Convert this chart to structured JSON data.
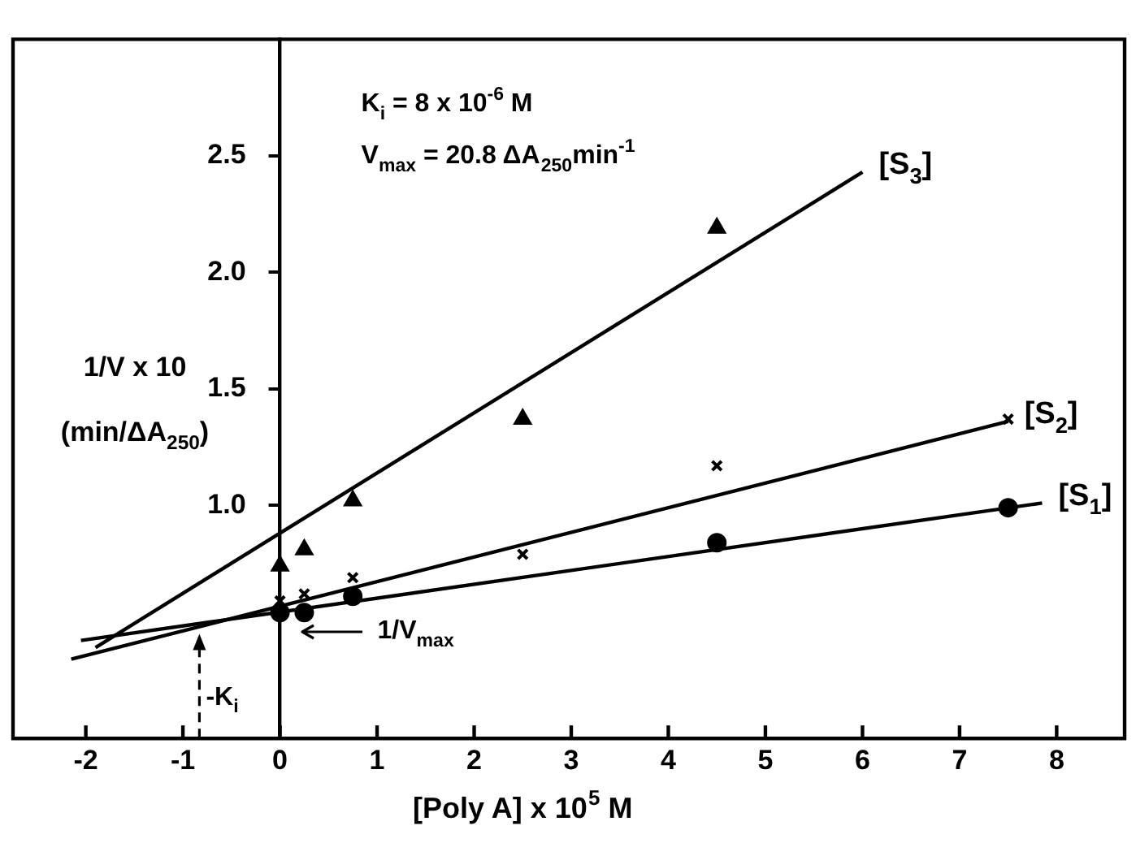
{
  "chart_data": {
    "type": "scatter",
    "xlabel": "[Poly A] x 10$^{5}$ M",
    "ylabel": "1/V x 10 (min/ΔA$_{250}$)",
    "xlim": [
      -2.75,
      8.7
    ],
    "ylim": [
      0,
      3
    ],
    "xticks": [
      -2,
      -1,
      0,
      1,
      2,
      3,
      4,
      5,
      6,
      7,
      8
    ],
    "yticks": [
      {
        "value": 1,
        "label": "1.0"
      },
      {
        "value": 1.5,
        "label": "1.5"
      },
      {
        "value": 2,
        "label": "2.0"
      },
      {
        "value": 2.5,
        "label": "2.5"
      }
    ],
    "annotations": [
      "K$_{i}$ = 8 x 10$^{-6}$ M",
      "V$_{max}$ = 20.8 ΔA$_{250}$min$^{-1}$",
      {
        "text": "-K$_{i}$",
        "x": -0.83,
        "y": 0.49
      },
      "1/V$_{max}$"
    ],
    "series": [
      {
        "type": "scatter",
        "marker": "triangle",
        "color": "#000000",
        "x": [
          0,
          0.25,
          0.75,
          2.5,
          4.5
        ],
        "values": [
          0.74,
          0.81,
          1.02,
          1.37,
          2.19
        ]
      },
      {
        "type": "scatter",
        "marker": "cross",
        "color": "#000000",
        "x": [
          0,
          0.25,
          0.75,
          2.5,
          4.5,
          7.5
        ],
        "values": [
          0.59,
          0.62,
          0.69,
          0.79,
          1.17,
          1.37
        ]
      },
      {
        "type": "scatter",
        "marker": "circle",
        "color": "#000000",
        "x": [
          0,
          0.25,
          0.75,
          4.5,
          7.5
        ],
        "values": [
          0.54,
          0.54,
          0.61,
          0.84,
          0.99
        ]
      },
      {
        "type": "line",
        "name": "[S$_{3}$]",
        "color": "#000000",
        "x": [
          -1.9,
          6
        ],
        "values": [
          0.39,
          2.43
        ]
      },
      {
        "type": "line",
        "name": "[S$_{2}$]",
        "color": "#000000",
        "x": [
          -2.15,
          7.5
        ],
        "values": [
          0.34,
          1.36
        ]
      },
      {
        "type": "line",
        "name": "[S$_{1}$]",
        "color": "#000000",
        "x": [
          -2.05,
          7.85
        ],
        "values": [
          0.42,
          1.01
        ]
      }
    ]
  }
}
